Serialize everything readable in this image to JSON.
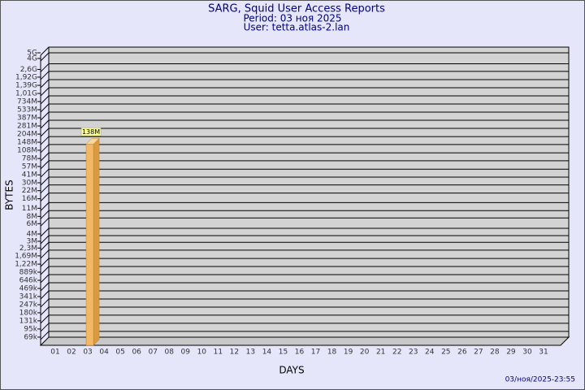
{
  "chart_data": {
    "type": "bar",
    "title": "SARG, Squid User Access Reports",
    "subtitles": [
      "Period: 03 ноя 2025",
      "User: tetta.atlas-2.lan"
    ],
    "x_label": "DAYS",
    "y_label": "BYTES",
    "footer": "03/ноя/2025-23:55",
    "categories": [
      "01",
      "02",
      "03",
      "04",
      "05",
      "06",
      "07",
      "08",
      "09",
      "10",
      "11",
      "12",
      "13",
      "14",
      "15",
      "16",
      "17",
      "18",
      "19",
      "20",
      "21",
      "22",
      "23",
      "24",
      "25",
      "26",
      "27",
      "28",
      "29",
      "30",
      "31"
    ],
    "values": [
      null,
      null,
      138000000,
      null,
      null,
      null,
      null,
      null,
      null,
      null,
      null,
      null,
      null,
      null,
      null,
      null,
      null,
      null,
      null,
      null,
      null,
      null,
      null,
      null,
      null,
      null,
      null,
      null,
      null,
      null,
      null
    ],
    "value_labels": [
      null,
      null,
      "138M",
      null,
      null,
      null,
      null,
      null,
      null,
      null,
      null,
      null,
      null,
      null,
      null,
      null,
      null,
      null,
      null,
      null,
      null,
      null,
      null,
      null,
      null,
      null,
      null,
      null,
      null,
      null,
      null
    ],
    "color": "#f2b866",
    "log_scale": true,
    "grid": true,
    "ylim": [
      50000,
      5000000000
    ],
    "yticks": [
      {
        "value": 69000,
        "label": "69k"
      },
      {
        "value": 95000,
        "label": "95k"
      },
      {
        "value": 131000,
        "label": "131k"
      },
      {
        "value": 180000,
        "label": "180k"
      },
      {
        "value": 247000,
        "label": "247k"
      },
      {
        "value": 341000,
        "label": "341k"
      },
      {
        "value": 469000,
        "label": "469k"
      },
      {
        "value": 646000,
        "label": "646k"
      },
      {
        "value": 889000,
        "label": "889k"
      },
      {
        "value": 1220000,
        "label": "1,22M"
      },
      {
        "value": 1690000,
        "label": "1,69M"
      },
      {
        "value": 2300000,
        "label": "2,3M"
      },
      {
        "value": 3000000,
        "label": "3M"
      },
      {
        "value": 4000000,
        "label": "4M"
      },
      {
        "value": 6000000,
        "label": "6M"
      },
      {
        "value": 8000000,
        "label": "8M"
      },
      {
        "value": 11000000,
        "label": "11M"
      },
      {
        "value": 16000000,
        "label": "16M"
      },
      {
        "value": 22000000,
        "label": "22M"
      },
      {
        "value": 30000000,
        "label": "30M"
      },
      {
        "value": 41000000,
        "label": "41M"
      },
      {
        "value": 57000000,
        "label": "57M"
      },
      {
        "value": 78000000,
        "label": "78M"
      },
      {
        "value": 108000000,
        "label": "108M"
      },
      {
        "value": 148000000,
        "label": "148M"
      },
      {
        "value": 204000000,
        "label": "204M"
      },
      {
        "value": 281000000,
        "label": "281M"
      },
      {
        "value": 387000000,
        "label": "387M"
      },
      {
        "value": 533000000,
        "label": "533M"
      },
      {
        "value": 734000000,
        "label": "734M"
      },
      {
        "value": 1010000000,
        "label": "1,01G"
      },
      {
        "value": 1390000000,
        "label": "1,39G"
      },
      {
        "value": 1920000000,
        "label": "1,92G"
      },
      {
        "value": 2600000000,
        "label": "2,6G"
      },
      {
        "value": 4000000000,
        "label": "4G"
      },
      {
        "value": 5000000000,
        "label": "5G"
      }
    ]
  }
}
